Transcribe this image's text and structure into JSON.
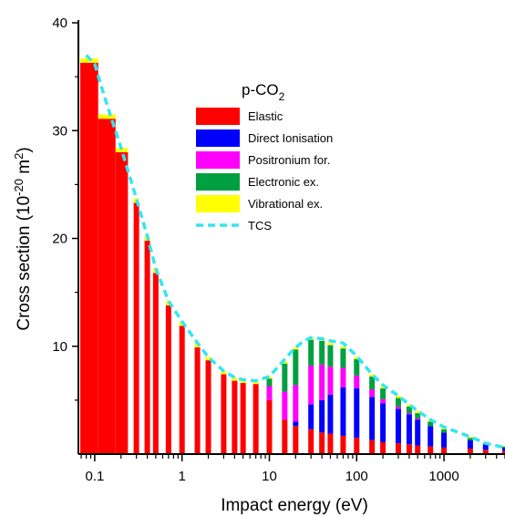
{
  "chart_data": {
    "type": "bar",
    "stacked": true,
    "title": "",
    "legend_title": {
      "base": "p-CO",
      "subscript": "2"
    },
    "xlabel": "Impact energy (eV)",
    "ylabel": {
      "main": "Cross section (10",
      "sup": "-20",
      "unit": " m",
      "unit_sup": "2",
      "close": ")"
    },
    "x_scale": "log",
    "xlim": [
      0.065,
      5000
    ],
    "ylim": [
      0,
      40
    ],
    "x_ticks": [
      0.1,
      1,
      10,
      100,
      1000
    ],
    "x_tick_labels": [
      "0.1",
      "1",
      "10",
      "100",
      "1000"
    ],
    "y_ticks": [
      10,
      20,
      30,
      40
    ],
    "y_tick_labels": [
      "10",
      "20",
      "30",
      "40"
    ],
    "legend_position": "upper-middle",
    "colors": {
      "Elastic": "#ff0000",
      "Direct Ionisation": "#0000ff",
      "Positronium for.": "#ff00ff",
      "Electronic ex.": "#00a040",
      "Vibrational ex.": "#ffff00",
      "TCS": "#33e6f0"
    },
    "energies": [
      0.08,
      0.15,
      0.2,
      0.3,
      0.4,
      0.5,
      0.7,
      1,
      1.5,
      2,
      3,
      4,
      5,
      7,
      10,
      15,
      20,
      30,
      40,
      50,
      70,
      100,
      150,
      200,
      300,
      400,
      500,
      700,
      1000,
      2000,
      3000,
      5000
    ],
    "series": [
      {
        "name": "Elastic",
        "values": [
          36.3,
          31.1,
          28.0,
          23.3,
          19.8,
          16.8,
          13.8,
          11.9,
          9.9,
          8.7,
          7.4,
          6.8,
          6.6,
          6.5,
          5.0,
          3.2,
          2.6,
          2.3,
          2.0,
          1.9,
          1.7,
          1.5,
          1.3,
          1.1,
          1.0,
          0.9,
          0.8,
          0.7,
          0.6,
          0.5,
          0.4,
          0.3
        ]
      },
      {
        "name": "Direct Ionisation",
        "values": [
          0,
          0,
          0,
          0,
          0,
          0,
          0,
          0,
          0,
          0,
          0,
          0,
          0,
          0,
          0,
          0,
          0.4,
          2.3,
          3.0,
          3.6,
          4.5,
          4.6,
          4.0,
          3.6,
          3.2,
          2.8,
          2.4,
          1.9,
          1.4,
          0.8,
          0.5,
          0.3
        ]
      },
      {
        "name": "Positronium for.",
        "values": [
          0,
          0,
          0,
          0,
          0,
          0,
          0,
          0,
          0,
          0,
          0,
          0,
          0,
          0,
          1.3,
          2.6,
          3.4,
          3.6,
          3.3,
          2.6,
          1.8,
          1.2,
          0.7,
          0.4,
          0.2,
          0.1,
          0.1,
          0,
          0,
          0,
          0,
          0
        ]
      },
      {
        "name": "Electronic ex.",
        "values": [
          0,
          0,
          0,
          0,
          0,
          0,
          0,
          0,
          0,
          0,
          0,
          0,
          0,
          0,
          0.7,
          2.6,
          3.3,
          2.4,
          2.2,
          2.0,
          1.8,
          1.5,
          1.2,
          1.0,
          0.8,
          0.6,
          0.5,
          0.4,
          0.3,
          0.2,
          0.1,
          0.1
        ]
      },
      {
        "name": "Vibrational ex.",
        "values": [
          0.4,
          0.4,
          0.4,
          0.4,
          0.4,
          0.4,
          0.4,
          0.4,
          0.4,
          0.3,
          0.3,
          0.3,
          0.3,
          0.3,
          0.2,
          0.2,
          0.2,
          0.2,
          0.2,
          0.2,
          0.2,
          0.2,
          0.2,
          0.2,
          0.2,
          0.2,
          0.2,
          0.2,
          0.2,
          0.1,
          0.1,
          0.1
        ]
      }
    ],
    "tcs": {
      "name": "TCS",
      "x": [
        0.08,
        0.1,
        0.12,
        0.15,
        0.2,
        0.3,
        0.4,
        0.5,
        0.7,
        1,
        1.5,
        2,
        3,
        4,
        5,
        7,
        10,
        15,
        20,
        25,
        30,
        40,
        50,
        70,
        100,
        150,
        200,
        300,
        400,
        500,
        700,
        1000,
        2000,
        3000,
        5000
      ],
      "y": [
        37.0,
        36.2,
        34.0,
        31.5,
        28.4,
        23.7,
        20.2,
        17.2,
        14.2,
        12.3,
        10.3,
        9.0,
        7.7,
        7.1,
        6.9,
        6.8,
        7.2,
        8.8,
        9.9,
        10.5,
        10.8,
        10.7,
        10.5,
        10.3,
        9.1,
        7.4,
        6.4,
        5.4,
        4.6,
        4.0,
        3.2,
        2.5,
        1.6,
        1.0,
        0.6
      ]
    }
  }
}
